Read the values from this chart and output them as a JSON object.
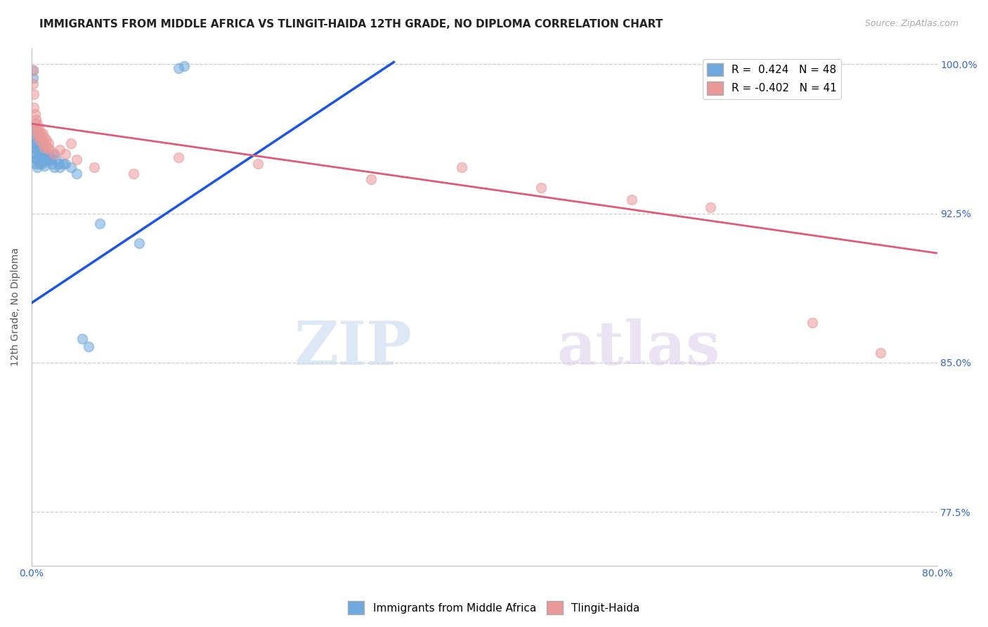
{
  "title": "IMMIGRANTS FROM MIDDLE AFRICA VS TLINGIT-HAIDA 12TH GRADE, NO DIPLOMA CORRELATION CHART",
  "source": "Source: ZipAtlas.com",
  "ylabel": "12th Grade, No Diploma",
  "xlim": [
    0.0,
    0.8
  ],
  "ylim": [
    0.748,
    1.008
  ],
  "yticks": [
    0.775,
    0.85,
    0.925,
    1.0
  ],
  "ytick_labels": [
    "77.5%",
    "85.0%",
    "92.5%",
    "100.0%"
  ],
  "xticks": [
    0.0,
    0.1,
    0.2,
    0.3,
    0.4,
    0.5,
    0.6,
    0.7,
    0.8
  ],
  "xtick_labels": [
    "0.0%",
    "",
    "",
    "",
    "",
    "",
    "",
    "",
    "80.0%"
  ],
  "blue_R": 0.424,
  "blue_N": 48,
  "pink_R": -0.402,
  "pink_N": 41,
  "blue_label": "Immigrants from Middle Africa",
  "pink_label": "Tlingit-Haida",
  "blue_color": "#6fa8dc",
  "pink_color": "#ea9999",
  "blue_line_color": "#1a56db",
  "pink_line_color": "#e05a7a",
  "blue_line_x": [
    0.0,
    0.32
  ],
  "blue_line_y": [
    0.88,
    1.001
  ],
  "pink_line_x": [
    0.0,
    0.8
  ],
  "pink_line_y": [
    0.97,
    0.905
  ],
  "blue_scatter": [
    [
      0.001,
      0.997
    ],
    [
      0.001,
      0.993
    ],
    [
      0.002,
      0.968
    ],
    [
      0.002,
      0.962
    ],
    [
      0.002,
      0.958
    ],
    [
      0.003,
      0.965
    ],
    [
      0.003,
      0.96
    ],
    [
      0.003,
      0.955
    ],
    [
      0.003,
      0.95
    ],
    [
      0.004,
      0.96
    ],
    [
      0.004,
      0.955
    ],
    [
      0.004,
      0.952
    ],
    [
      0.005,
      0.957
    ],
    [
      0.005,
      0.952
    ],
    [
      0.005,
      0.948
    ],
    [
      0.006,
      0.955
    ],
    [
      0.006,
      0.95
    ],
    [
      0.007,
      0.96
    ],
    [
      0.007,
      0.955
    ],
    [
      0.008,
      0.958
    ],
    [
      0.009,
      0.955
    ],
    [
      0.009,
      0.95
    ],
    [
      0.01,
      0.956
    ],
    [
      0.01,
      0.952
    ],
    [
      0.011,
      0.953
    ],
    [
      0.011,
      0.949
    ],
    [
      0.012,
      0.951
    ],
    [
      0.013,
      0.954
    ],
    [
      0.014,
      0.952
    ],
    [
      0.015,
      0.955
    ],
    [
      0.016,
      0.953
    ],
    [
      0.017,
      0.952
    ],
    [
      0.018,
      0.95
    ],
    [
      0.02,
      0.955
    ],
    [
      0.02,
      0.948
    ],
    [
      0.022,
      0.952
    ],
    [
      0.024,
      0.95
    ],
    [
      0.025,
      0.948
    ],
    [
      0.028,
      0.95
    ],
    [
      0.03,
      0.95
    ],
    [
      0.035,
      0.948
    ],
    [
      0.04,
      0.945
    ],
    [
      0.045,
      0.862
    ],
    [
      0.05,
      0.858
    ],
    [
      0.06,
      0.92
    ],
    [
      0.095,
      0.91
    ],
    [
      0.13,
      0.998
    ],
    [
      0.135,
      0.999
    ]
  ],
  "pink_scatter": [
    [
      0.001,
      0.997
    ],
    [
      0.001,
      0.99
    ],
    [
      0.002,
      0.985
    ],
    [
      0.002,
      0.978
    ],
    [
      0.003,
      0.975
    ],
    [
      0.003,
      0.97
    ],
    [
      0.004,
      0.972
    ],
    [
      0.004,
      0.967
    ],
    [
      0.005,
      0.97
    ],
    [
      0.005,
      0.965
    ],
    [
      0.006,
      0.968
    ],
    [
      0.006,
      0.964
    ],
    [
      0.007,
      0.966
    ],
    [
      0.007,
      0.962
    ],
    [
      0.008,
      0.965
    ],
    [
      0.009,
      0.963
    ],
    [
      0.01,
      0.965
    ],
    [
      0.01,
      0.96
    ],
    [
      0.011,
      0.963
    ],
    [
      0.011,
      0.958
    ],
    [
      0.012,
      0.96
    ],
    [
      0.013,
      0.962
    ],
    [
      0.014,
      0.958
    ],
    [
      0.015,
      0.96
    ],
    [
      0.016,
      0.957
    ],
    [
      0.02,
      0.955
    ],
    [
      0.025,
      0.957
    ],
    [
      0.03,
      0.955
    ],
    [
      0.035,
      0.96
    ],
    [
      0.04,
      0.952
    ],
    [
      0.055,
      0.948
    ],
    [
      0.09,
      0.945
    ],
    [
      0.13,
      0.953
    ],
    [
      0.2,
      0.95
    ],
    [
      0.3,
      0.942
    ],
    [
      0.38,
      0.948
    ],
    [
      0.45,
      0.938
    ],
    [
      0.53,
      0.932
    ],
    [
      0.6,
      0.928
    ],
    [
      0.69,
      0.87
    ],
    [
      0.75,
      0.855
    ]
  ],
  "watermark_zip": "ZIP",
  "watermark_atlas": "atlas",
  "title_fontsize": 11,
  "axis_label_fontsize": 10,
  "tick_fontsize": 10,
  "legend_fontsize": 11
}
